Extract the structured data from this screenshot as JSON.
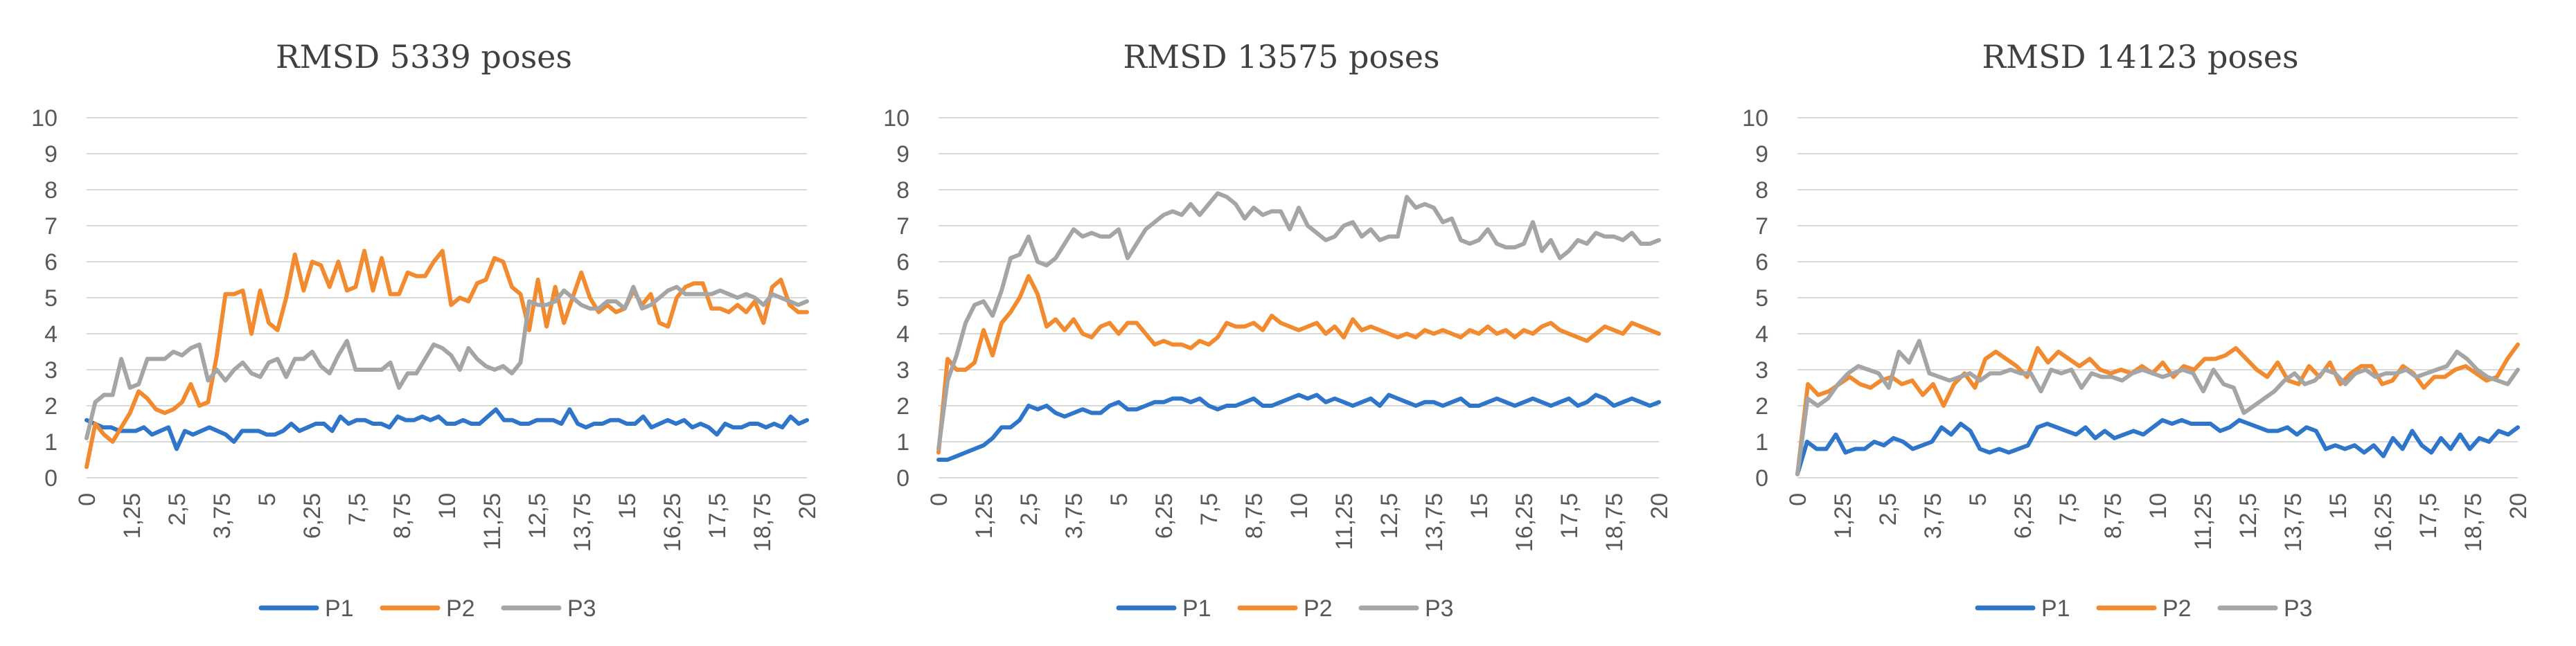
{
  "xticks": [
    "0",
    "1,25",
    "2,5",
    "3,75",
    "5",
    "6,25",
    "7,5",
    "8,75",
    "10",
    "11,25",
    "12,5",
    "13,75",
    "15",
    "16,25",
    "17,5",
    "18,75",
    "20"
  ],
  "yticks": [
    "0",
    "1",
    "2",
    "3",
    "4",
    "5",
    "6",
    "7",
    "8",
    "9",
    "10"
  ],
  "colors": {
    "P1": "#2f75c9",
    "P2": "#f28a30",
    "P3": "#a5a5a5"
  },
  "chart_data": [
    {
      "type": "line",
      "title": "RMSD 5339 poses",
      "xlim": [
        0,
        20
      ],
      "ylim": [
        0,
        10
      ],
      "grid": true,
      "legend": "bottom",
      "series": [
        {
          "name": "P1",
          "values": [
            1.6,
            1.5,
            1.4,
            1.4,
            1.3,
            1.3,
            1.3,
            1.4,
            1.2,
            1.3,
            1.4,
            0.8,
            1.3,
            1.2,
            1.3,
            1.4,
            1.3,
            1.2,
            1.0,
            1.3,
            1.3,
            1.3,
            1.2,
            1.2,
            1.3,
            1.5,
            1.3,
            1.4,
            1.5,
            1.5,
            1.3,
            1.7,
            1.5,
            1.6,
            1.6,
            1.5,
            1.5,
            1.4,
            1.7,
            1.6,
            1.6,
            1.7,
            1.6,
            1.7,
            1.5,
            1.5,
            1.6,
            1.5,
            1.5,
            1.7,
            1.9,
            1.6,
            1.6,
            1.5,
            1.5,
            1.6,
            1.6,
            1.6,
            1.5,
            1.9,
            1.5,
            1.4,
            1.5,
            1.5,
            1.6,
            1.6,
            1.5,
            1.5,
            1.7,
            1.4,
            1.5,
            1.6,
            1.5,
            1.6,
            1.4,
            1.5,
            1.4,
            1.2,
            1.5,
            1.4,
            1.4,
            1.5,
            1.5,
            1.4,
            1.5,
            1.4,
            1.7,
            1.5,
            1.6
          ]
        },
        {
          "name": "P2",
          "values": [
            0.3,
            1.5,
            1.2,
            1.0,
            1.4,
            1.8,
            2.4,
            2.2,
            1.9,
            1.8,
            1.9,
            2.1,
            2.6,
            2.0,
            2.1,
            3.4,
            5.1,
            5.1,
            5.2,
            4.0,
            5.2,
            4.3,
            4.1,
            5.0,
            6.2,
            5.2,
            6.0,
            5.9,
            5.3,
            6.0,
            5.2,
            5.3,
            6.3,
            5.2,
            6.1,
            5.1,
            5.1,
            5.7,
            5.6,
            5.6,
            6.0,
            6.3,
            4.8,
            5.0,
            4.9,
            5.4,
            5.5,
            6.1,
            6.0,
            5.3,
            5.1,
            4.1,
            5.5,
            4.2,
            5.3,
            4.3,
            5.0,
            5.7,
            5.0,
            4.6,
            4.8,
            4.6,
            4.7,
            5.2,
            4.8,
            5.1,
            4.3,
            4.2,
            5.0,
            5.3,
            5.4,
            5.4,
            4.7,
            4.7,
            4.6,
            4.8,
            4.6,
            4.9,
            4.3,
            5.3,
            5.5,
            4.8,
            4.6,
            4.6
          ]
        },
        {
          "name": "P3",
          "values": [
            1.1,
            2.1,
            2.3,
            2.3,
            3.3,
            2.5,
            2.6,
            3.3,
            3.3,
            3.3,
            3.5,
            3.4,
            3.6,
            3.7,
            2.7,
            3.0,
            2.7,
            3.0,
            3.2,
            2.9,
            2.8,
            3.2,
            3.3,
            2.8,
            3.3,
            3.3,
            3.5,
            3.1,
            2.9,
            3.4,
            3.8,
            3.0,
            3.0,
            3.0,
            3.0,
            3.2,
            2.5,
            2.9,
            2.9,
            3.3,
            3.7,
            3.6,
            3.4,
            3.0,
            3.6,
            3.3,
            3.1,
            3.0,
            3.1,
            2.9,
            3.2,
            4.9,
            4.8,
            4.8,
            4.9,
            5.2,
            5.0,
            4.8,
            4.7,
            4.7,
            4.9,
            4.9,
            4.7,
            5.3,
            4.7,
            4.8,
            5.0,
            5.2,
            5.3,
            5.1,
            5.1,
            5.1,
            5.1,
            5.2,
            5.1,
            5.0,
            5.1,
            5.0,
            4.8,
            5.1,
            5.0,
            4.9,
            4.8,
            4.9
          ]
        }
      ]
    },
    {
      "type": "line",
      "title": "RMSD 13575 poses",
      "xlim": [
        0,
        20
      ],
      "ylim": [
        0,
        10
      ],
      "grid": true,
      "legend": "bottom",
      "series": [
        {
          "name": "P1",
          "values": [
            0.5,
            0.5,
            0.6,
            0.7,
            0.8,
            0.9,
            1.1,
            1.4,
            1.4,
            1.6,
            2.0,
            1.9,
            2.0,
            1.8,
            1.7,
            1.8,
            1.9,
            1.8,
            1.8,
            2.0,
            2.1,
            1.9,
            1.9,
            2.0,
            2.1,
            2.1,
            2.2,
            2.2,
            2.1,
            2.2,
            2.0,
            1.9,
            2.0,
            2.0,
            2.1,
            2.2,
            2.0,
            2.0,
            2.1,
            2.2,
            2.3,
            2.2,
            2.3,
            2.1,
            2.2,
            2.1,
            2.0,
            2.1,
            2.2,
            2.0,
            2.3,
            2.2,
            2.1,
            2.0,
            2.1,
            2.1,
            2.0,
            2.1,
            2.2,
            2.0,
            2.0,
            2.1,
            2.2,
            2.1,
            2.0,
            2.1,
            2.2,
            2.1,
            2.0,
            2.1,
            2.2,
            2.0,
            2.1,
            2.3,
            2.2,
            2.0,
            2.1,
            2.2,
            2.1,
            2.0,
            2.1
          ]
        },
        {
          "name": "P2",
          "values": [
            0.7,
            3.3,
            3.0,
            3.0,
            3.2,
            4.1,
            3.4,
            4.3,
            4.6,
            5.0,
            5.6,
            5.1,
            4.2,
            4.4,
            4.1,
            4.4,
            4.0,
            3.9,
            4.2,
            4.3,
            4.0,
            4.3,
            4.3,
            4.0,
            3.7,
            3.8,
            3.7,
            3.7,
            3.6,
            3.8,
            3.7,
            3.9,
            4.3,
            4.2,
            4.2,
            4.3,
            4.1,
            4.5,
            4.3,
            4.2,
            4.1,
            4.2,
            4.3,
            4.0,
            4.2,
            3.9,
            4.4,
            4.1,
            4.2,
            4.1,
            4.0,
            3.9,
            4.0,
            3.9,
            4.1,
            4.0,
            4.1,
            4.0,
            3.9,
            4.1,
            4.0,
            4.2,
            4.0,
            4.1,
            3.9,
            4.1,
            4.0,
            4.2,
            4.3,
            4.1,
            4.0,
            3.9,
            3.8,
            4.0,
            4.2,
            4.1,
            4.0,
            4.3,
            4.2,
            4.1,
            4.0
          ]
        },
        {
          "name": "P3",
          "values": [
            0.8,
            2.7,
            3.4,
            4.3,
            4.8,
            4.9,
            4.5,
            5.2,
            6.1,
            6.2,
            6.7,
            6.0,
            5.9,
            6.1,
            6.5,
            6.9,
            6.7,
            6.8,
            6.7,
            6.7,
            6.9,
            6.1,
            6.5,
            6.9,
            7.1,
            7.3,
            7.4,
            7.3,
            7.6,
            7.3,
            7.6,
            7.9,
            7.8,
            7.6,
            7.2,
            7.5,
            7.3,
            7.4,
            7.4,
            6.9,
            7.5,
            7.0,
            6.8,
            6.6,
            6.7,
            7.0,
            7.1,
            6.7,
            6.9,
            6.6,
            6.7,
            6.7,
            7.8,
            7.5,
            7.6,
            7.5,
            7.1,
            7.2,
            6.6,
            6.5,
            6.6,
            6.9,
            6.5,
            6.4,
            6.4,
            6.5,
            7.1,
            6.3,
            6.6,
            6.1,
            6.3,
            6.6,
            6.5,
            6.8,
            6.7,
            6.7,
            6.6,
            6.8,
            6.5,
            6.5,
            6.6
          ]
        }
      ]
    },
    {
      "type": "line",
      "title": "RMSD 14123 poses",
      "xlim": [
        0,
        20
      ],
      "ylim": [
        0,
        10
      ],
      "grid": true,
      "legend": "bottom",
      "series": [
        {
          "name": "P1",
          "values": [
            0.1,
            1.0,
            0.8,
            0.8,
            1.2,
            0.7,
            0.8,
            0.8,
            1.0,
            0.9,
            1.1,
            1.0,
            0.8,
            0.9,
            1.0,
            1.4,
            1.2,
            1.5,
            1.3,
            0.8,
            0.7,
            0.8,
            0.7,
            0.8,
            0.9,
            1.4,
            1.5,
            1.4,
            1.3,
            1.2,
            1.4,
            1.1,
            1.3,
            1.1,
            1.2,
            1.3,
            1.2,
            1.4,
            1.6,
            1.5,
            1.6,
            1.5,
            1.5,
            1.5,
            1.3,
            1.4,
            1.6,
            1.5,
            1.4,
            1.3,
            1.3,
            1.4,
            1.2,
            1.4,
            1.3,
            0.8,
            0.9,
            0.8,
            0.9,
            0.7,
            0.9,
            0.6,
            1.1,
            0.8,
            1.3,
            0.9,
            0.7,
            1.1,
            0.8,
            1.2,
            0.8,
            1.1,
            1.0,
            1.3,
            1.2,
            1.4
          ]
        },
        {
          "name": "P2",
          "values": [
            0.1,
            2.6,
            2.3,
            2.4,
            2.6,
            2.8,
            2.6,
            2.5,
            2.7,
            2.8,
            2.6,
            2.7,
            2.3,
            2.6,
            2.0,
            2.6,
            2.9,
            2.5,
            3.3,
            3.5,
            3.3,
            3.1,
            2.8,
            3.6,
            3.2,
            3.5,
            3.3,
            3.1,
            3.3,
            3.0,
            2.9,
            3.0,
            2.9,
            3.1,
            2.9,
            3.2,
            2.8,
            3.1,
            3.0,
            3.3,
            3.3,
            3.4,
            3.6,
            3.3,
            3.0,
            2.8,
            3.2,
            2.7,
            2.6,
            3.1,
            2.8,
            3.2,
            2.6,
            2.9,
            3.1,
            3.1,
            2.6,
            2.7,
            3.1,
            2.9,
            2.5,
            2.8,
            2.8,
            3.0,
            3.1,
            2.9,
            2.7,
            2.8,
            3.3,
            3.7
          ]
        },
        {
          "name": "P3",
          "values": [
            0.1,
            2.2,
            2.0,
            2.2,
            2.6,
            2.9,
            3.1,
            3.0,
            2.9,
            2.5,
            3.5,
            3.2,
            3.8,
            2.9,
            2.8,
            2.7,
            2.8,
            2.9,
            2.7,
            2.9,
            2.9,
            3.0,
            2.9,
            2.9,
            2.4,
            3.0,
            2.9,
            3.0,
            2.5,
            2.9,
            2.8,
            2.8,
            2.7,
            2.9,
            3.0,
            2.9,
            2.8,
            2.9,
            3.0,
            2.9,
            2.4,
            3.0,
            2.6,
            2.5,
            1.8,
            2.0,
            2.2,
            2.4,
            2.7,
            2.9,
            2.6,
            2.7,
            3.0,
            2.9,
            2.6,
            2.9,
            3.0,
            2.8,
            2.9,
            2.9,
            3.0,
            2.8,
            2.9,
            3.0,
            3.1,
            3.5,
            3.3,
            3.0,
            2.8,
            2.7,
            2.6,
            3.0
          ]
        }
      ]
    }
  ]
}
